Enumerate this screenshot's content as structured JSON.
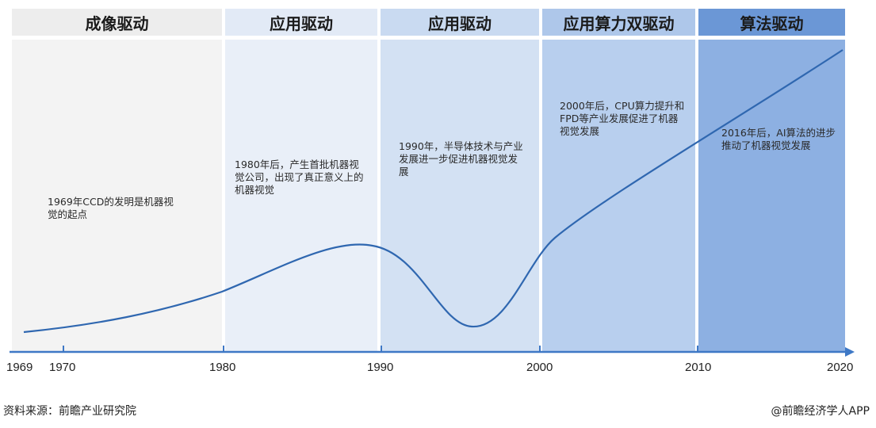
{
  "eras": [
    {
      "header": "成像驱动",
      "note": "1969年CCD的发明是机器视觉的起点",
      "header_color": "#ededed",
      "panel_color": "#f3f3f3"
    },
    {
      "header": "应用驱动",
      "note": "1980年后，产生首批机器视觉公司，出现了真正意义上的机器视觉",
      "header_color": "#e2eaf6",
      "panel_color": "#e9eff8"
    },
    {
      "header": "应用驱动",
      "note": "1990年，半导体技术与产业发展进一步促进机器视觉发展",
      "header_color": "#c9daf1",
      "panel_color": "#d3e1f3"
    },
    {
      "header": "应用算力双驱动",
      "note": "2000年后，CPU算力提升和FPD等产业发展促进了机器视觉发展",
      "header_color": "#aec7ea",
      "panel_color": "#b8cfee"
    },
    {
      "header": "算法驱动",
      "note": "2016年后，AI算法的进步推动了机器视觉发展",
      "header_color": "#6b97d6",
      "panel_color": "#8db0e2"
    }
  ],
  "axis": {
    "ticks": [
      "1969",
      "1970",
      "1980",
      "1990",
      "2000",
      "2010",
      "2020"
    ],
    "color": "#3e78c6"
  },
  "curve_color": "#2f67b0",
  "footer": {
    "source": "资料来源：前瞻产业研究院",
    "credit": "@前瞻经济学人APP"
  }
}
